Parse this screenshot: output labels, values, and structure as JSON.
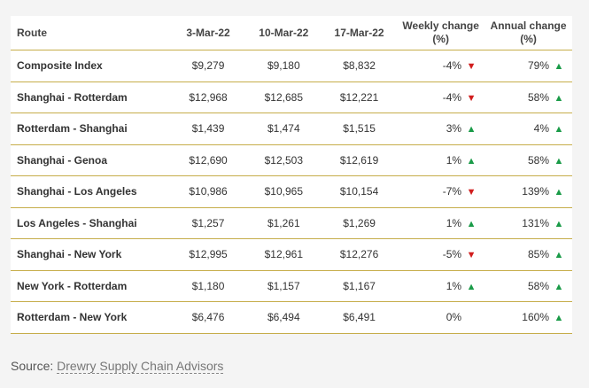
{
  "table": {
    "headers": {
      "route": "Route",
      "d1": "3-Mar-22",
      "d2": "10-Mar-22",
      "d3": "17-Mar-22",
      "weekly": "Weekly change (%)",
      "annual": "Annual change (%)"
    },
    "rows": [
      {
        "route": "Composite Index",
        "d1": "$9,279",
        "d2": "$9,180",
        "d3": "$8,832",
        "weekly": "-4%",
        "weekly_dir": "down",
        "annual": "79%",
        "annual_dir": "up"
      },
      {
        "route": "Shanghai - Rotterdam",
        "d1": "$12,968",
        "d2": "$12,685",
        "d3": "$12,221",
        "weekly": "-4%",
        "weekly_dir": "down",
        "annual": "58%",
        "annual_dir": "up"
      },
      {
        "route": "Rotterdam - Shanghai",
        "d1": "$1,439",
        "d2": "$1,474",
        "d3": "$1,515",
        "weekly": "3%",
        "weekly_dir": "up",
        "annual": "4%",
        "annual_dir": "up"
      },
      {
        "route": "Shanghai - Genoa",
        "d1": "$12,690",
        "d2": "$12,503",
        "d3": "$12,619",
        "weekly": "1%",
        "weekly_dir": "up",
        "annual": "58%",
        "annual_dir": "up"
      },
      {
        "route": "Shanghai - Los Angeles",
        "d1": "$10,986",
        "d2": "$10,965",
        "d3": "$10,154",
        "weekly": "-7%",
        "weekly_dir": "down",
        "annual": "139%",
        "annual_dir": "up"
      },
      {
        "route": "Los Angeles - Shanghai",
        "d1": "$1,257",
        "d2": "$1,261",
        "d3": "$1,269",
        "weekly": "1%",
        "weekly_dir": "up",
        "annual": "131%",
        "annual_dir": "up"
      },
      {
        "route": "Shanghai - New York",
        "d1": "$12,995",
        "d2": "$12,961",
        "d3": "$12,276",
        "weekly": "-5%",
        "weekly_dir": "down",
        "annual": "85%",
        "annual_dir": "up"
      },
      {
        "route": "New York - Rotterdam",
        "d1": "$1,180",
        "d2": "$1,157",
        "d3": "$1,167",
        "weekly": "1%",
        "weekly_dir": "up",
        "annual": "58%",
        "annual_dir": "up"
      },
      {
        "route": "Rotterdam - New York",
        "d1": "$6,476",
        "d2": "$6,494",
        "d3": "$6,491",
        "weekly": "0%",
        "weekly_dir": "none",
        "annual": "160%",
        "annual_dir": "up"
      }
    ]
  },
  "source": {
    "label": "Source:",
    "link_text": "Drewry Supply Chain Advisors"
  },
  "colors": {
    "up": "#1a9b48",
    "down": "#d11d1d",
    "rule": "#c6ad4a"
  },
  "icons": {
    "up": "triangle-up-icon",
    "down": "triangle-down-icon"
  }
}
